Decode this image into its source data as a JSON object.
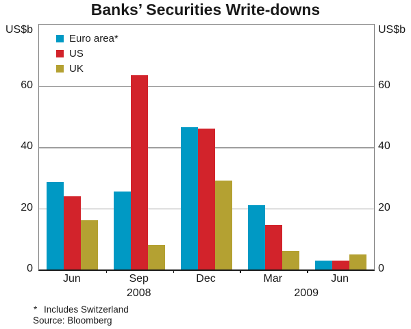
{
  "title": "Banks’ Securities Write-downs",
  "axes": {
    "left_unit": "US$b",
    "right_unit": "US$b",
    "yticks": [
      0,
      20,
      40,
      60
    ],
    "ylim": [
      0,
      80
    ]
  },
  "legend": {
    "items": [
      {
        "label": "Euro area*",
        "color": "#0099C4"
      },
      {
        "label": "US",
        "color": "#D2232B"
      },
      {
        "label": "UK",
        "color": "#B4A132"
      }
    ],
    "position": "top-left"
  },
  "chart_data": {
    "type": "bar",
    "categories": [
      "Jun 2008",
      "Sep 2008",
      "Dec 2008",
      "Mar 2009",
      "Jun 2009"
    ],
    "x_tick_labels": [
      "Jun",
      "Sep",
      "Dec",
      "Mar",
      "Jun"
    ],
    "year_labels": [
      "2008",
      "2009"
    ],
    "series": [
      {
        "name": "Euro area*",
        "color": "#0099C4",
        "values": [
          28.5,
          25.5,
          46.5,
          21,
          3
        ]
      },
      {
        "name": "US",
        "color": "#D2232B",
        "values": [
          24,
          63.5,
          46,
          14.5,
          3
        ]
      },
      {
        "name": "UK",
        "color": "#B4A132",
        "values": [
          16,
          8,
          29,
          6,
          5
        ]
      }
    ],
    "title": "Banks’ Securities Write-downs",
    "xlabel": "",
    "ylabel": "US$b",
    "ylim": [
      0,
      80
    ],
    "gridlines": [
      20,
      40,
      60
    ],
    "grid": true,
    "legend_position": "top-left"
  },
  "footnotes": {
    "marker": "*",
    "note": "Includes Switzerland",
    "source": "Source: Bloomberg"
  }
}
